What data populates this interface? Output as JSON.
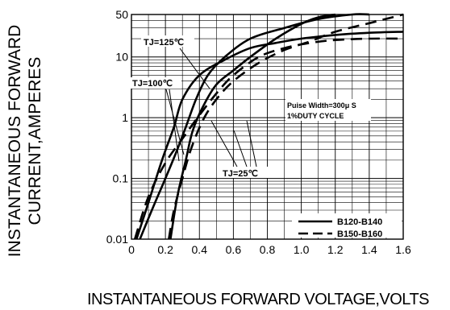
{
  "chart_data": {
    "type": "line",
    "xlabel": "INSTANTANEOUS FORWARD VOLTAGE,VOLTS",
    "ylabel_lines": [
      "INSTANTANEOUS FORWARD",
      "CURRENT,AMPERES"
    ],
    "x_ticks": [
      "0",
      "0.2",
      "0.4",
      "0.6",
      "0.8",
      "1.0",
      "1.2",
      "1.4",
      "1.6"
    ],
    "y_ticks": [
      "0.01",
      "0.1",
      "1",
      "10",
      "50"
    ],
    "xlim": [
      0,
      1.6
    ],
    "ylim": [
      0.01,
      50
    ],
    "y_scale": "log",
    "grid": true,
    "legend_position": "bottom-right",
    "legend": [
      {
        "label": "B120-B140",
        "style": "solid"
      },
      {
        "label": "B150-B160",
        "style": "dashed"
      }
    ],
    "annotations": {
      "pulse": [
        "Puise Width=300μ S",
        "1%DUTY CYCLE"
      ],
      "tj125": "TJ=125℃",
      "tj100": "TJ=100℃",
      "tj25": "TJ=25℃"
    },
    "series": [
      {
        "style": "solid",
        "x": [
          0.03,
          0.1,
          0.18,
          0.25,
          0.3,
          0.4,
          0.55,
          0.7,
          0.85,
          1.0,
          1.2,
          1.4,
          1.6
        ],
        "y": [
          0.01,
          0.04,
          0.2,
          0.7,
          2,
          5,
          9,
          14,
          17,
          20,
          23,
          25,
          26
        ]
      },
      {
        "style": "solid",
        "x": [
          0.05,
          0.12,
          0.2,
          0.27,
          0.32,
          0.38,
          0.45,
          0.55,
          0.7,
          0.9,
          1.1,
          1.3,
          1.4
        ],
        "y": [
          0.01,
          0.03,
          0.1,
          0.3,
          0.7,
          2,
          5,
          10,
          20,
          30,
          42,
          50,
          50
        ]
      },
      {
        "style": "solid",
        "x": [
          0.23,
          0.27,
          0.32,
          0.36,
          0.42,
          0.5,
          0.6,
          0.7,
          0.85,
          1.0,
          1.1,
          1.2
        ],
        "y": [
          0.01,
          0.05,
          0.2,
          0.6,
          1.5,
          3.5,
          6,
          10,
          20,
          35,
          45,
          50
        ]
      },
      {
        "style": "dashed",
        "x": [
          0.02,
          0.1,
          0.2,
          0.3,
          0.4,
          0.5,
          0.6,
          0.75,
          0.9,
          1.05,
          1.2,
          1.4,
          1.6
        ],
        "y": [
          0.01,
          0.05,
          0.18,
          0.45,
          1.1,
          2.5,
          5,
          10,
          14,
          17,
          19,
          20,
          20
        ]
      },
      {
        "style": "dashed",
        "x": [
          0.22,
          0.25,
          0.3,
          0.35,
          0.42,
          0.5,
          0.6,
          0.75,
          0.9,
          1.05,
          1.2,
          1.4,
          1.6
        ],
        "y": [
          0.01,
          0.03,
          0.1,
          0.3,
          0.9,
          2,
          4,
          8,
          13,
          18,
          26,
          36,
          50
        ]
      }
    ]
  }
}
